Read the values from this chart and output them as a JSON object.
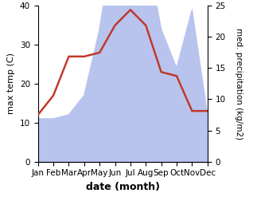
{
  "months": [
    "Jan",
    "Feb",
    "Mar",
    "Apr",
    "May",
    "Jun",
    "Jul",
    "Aug",
    "Sep",
    "Oct",
    "Nov",
    "Dec"
  ],
  "temperature": [
    12,
    17,
    27,
    27,
    28,
    35,
    39,
    35,
    23,
    22,
    13,
    13
  ],
  "precipitation": [
    11,
    11,
    12,
    17,
    34,
    60,
    58,
    55,
    34,
    24,
    39,
    12
  ],
  "temp_color": "#c0392b",
  "precip_fill_color": "#b8c4ee",
  "ylabel_left": "max temp (C)",
  "ylabel_right": "med. precipitation (kg/m2)",
  "xlabel": "date (month)",
  "ylim_left": [
    0,
    40
  ],
  "ylim_right": [
    0,
    25
  ],
  "left_yticks": [
    0,
    10,
    20,
    30,
    40
  ],
  "right_yticks": [
    0,
    5,
    10,
    15,
    20,
    25
  ],
  "label_fontsize": 8,
  "tick_fontsize": 7.5,
  "xlabel_fontsize": 9
}
